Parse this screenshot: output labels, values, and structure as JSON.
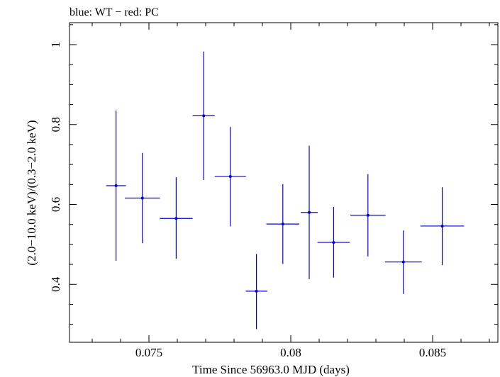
{
  "chart_data": {
    "type": "scatter",
    "title": "blue: WT − red: PC",
    "xlabel": "Time Since 56963.0 MJD (days)",
    "ylabel": "(2.0−10.0 keV)/(0.3−2.0 keV)",
    "xlim": [
      0.0722,
      0.0873
    ],
    "ylim": [
      0.255,
      1.055
    ],
    "x_ticks": [
      {
        "value": 0.075,
        "label": "0.075"
      },
      {
        "value": 0.08,
        "label": "0.08"
      },
      {
        "value": 0.085,
        "label": "0.085"
      }
    ],
    "y_ticks": [
      {
        "value": 0.4,
        "label": "0.4"
      },
      {
        "value": 0.6,
        "label": "0.6"
      },
      {
        "value": 0.8,
        "label": "0.8"
      },
      {
        "value": 1.0,
        "label": "1"
      }
    ],
    "grid": false,
    "series": [
      {
        "name": "WT",
        "color": "#0000dd",
        "points": [
          {
            "x": 0.07384,
            "xerr": 0.00035,
            "y": 0.647,
            "yerr_low": 0.188,
            "yerr_high": 0.188
          },
          {
            "x": 0.07477,
            "xerr": 0.00062,
            "y": 0.616,
            "yerr_low": 0.113,
            "yerr_high": 0.113
          },
          {
            "x": 0.07596,
            "xerr": 0.00058,
            "y": 0.565,
            "yerr_low": 0.101,
            "yerr_high": 0.103
          },
          {
            "x": 0.07693,
            "xerr": 0.00039,
            "y": 0.822,
            "yerr_low": 0.161,
            "yerr_high": 0.161
          },
          {
            "x": 0.07787,
            "xerr": 0.00055,
            "y": 0.67,
            "yerr_low": 0.125,
            "yerr_high": 0.124
          },
          {
            "x": 0.07879,
            "xerr": 0.00038,
            "y": 0.383,
            "yerr_low": 0.095,
            "yerr_high": 0.093
          },
          {
            "x": 0.07972,
            "xerr": 0.00058,
            "y": 0.551,
            "yerr_low": 0.1,
            "yerr_high": 0.1
          },
          {
            "x": 0.08065,
            "xerr": 0.0003,
            "y": 0.58,
            "yerr_low": 0.167,
            "yerr_high": 0.167
          },
          {
            "x": 0.08151,
            "xerr": 0.00057,
            "y": 0.505,
            "yerr_low": 0.088,
            "yerr_high": 0.089
          },
          {
            "x": 0.08272,
            "xerr": 0.00062,
            "y": 0.573,
            "yerr_low": 0.103,
            "yerr_high": 0.103
          },
          {
            "x": 0.08397,
            "xerr": 0.00065,
            "y": 0.456,
            "yerr_low": 0.08,
            "yerr_high": 0.079
          },
          {
            "x": 0.08534,
            "xerr": 0.00077,
            "y": 0.546,
            "yerr_low": 0.098,
            "yerr_high": 0.097
          }
        ]
      }
    ]
  }
}
